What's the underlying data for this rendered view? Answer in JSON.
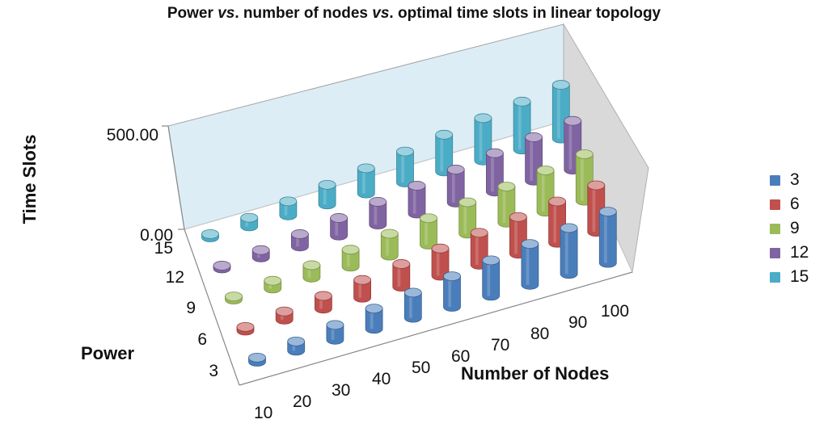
{
  "chart_data": {
    "type": "bar3d",
    "title_parts": [
      "Power ",
      "vs",
      ". number of nodes ",
      "vs",
      ". optimal time slots in linear topology"
    ],
    "xlabel": "Number of Nodes",
    "ylabel": "Time Slots",
    "zlabel": "Power",
    "x_categories": [
      "10",
      "20",
      "30",
      "40",
      "50",
      "60",
      "70",
      "80",
      "90",
      "100"
    ],
    "y_ticks": [
      "0.00",
      "500.00"
    ],
    "ylim": [
      0,
      500
    ],
    "series": [
      {
        "name": "3",
        "color": "#4a7ebb",
        "values": [
          20,
          45,
          72,
          98,
          122,
          148,
          172,
          198,
          222,
          248
        ]
      },
      {
        "name": "6",
        "color": "#c0504d",
        "values": [
          18,
          40,
          62,
          86,
          110,
          132,
          155,
          178,
          200,
          225
        ]
      },
      {
        "name": "9",
        "color": "#9bbb59",
        "values": [
          15,
          38,
          60,
          82,
          106,
          128,
          152,
          175,
          200,
          225
        ]
      },
      {
        "name": "12",
        "color": "#8064a2",
        "values": [
          14,
          36,
          60,
          85,
          110,
          135,
          160,
          186,
          210,
          236
        ]
      },
      {
        "name": "15",
        "color": "#4bacc6",
        "values": [
          16,
          42,
          68,
          95,
          122,
          150,
          178,
          205,
          232,
          260
        ]
      }
    ]
  }
}
